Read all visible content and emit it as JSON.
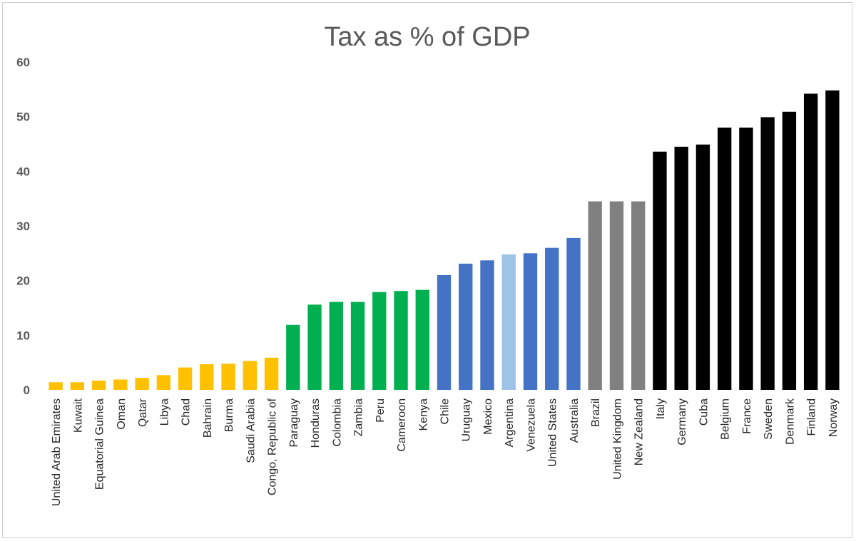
{
  "chart_data": {
    "type": "bar",
    "title": "Tax as % of GDP",
    "xlabel": "",
    "ylabel": "",
    "ylim": [
      0,
      60
    ],
    "yticks": [
      0,
      10,
      20,
      30,
      40,
      50,
      60
    ],
    "grid": false,
    "legend": "none",
    "categories": [
      "United Arab Emirates",
      "Kuwait",
      "Equatorial Guinea",
      "Oman",
      "Qatar",
      "Libya",
      "Chad",
      "Bahrain",
      "Burma",
      "Saudi Arabia",
      "Congo, Republic of",
      "Paraguay",
      "Honduras",
      "Colombia",
      "Zambia",
      "Peru",
      "Cameroon",
      "Kenya",
      "Chile",
      "Uruguay",
      "Mexico",
      "Argentina",
      "Venezuela",
      "United States",
      "Australia",
      "Brazil",
      "United Kingdom",
      "New Zealand",
      "Italy",
      "Germany",
      "Cuba",
      "Belgium",
      "France",
      "Sweden",
      "Denmark",
      "Finland",
      "Norway"
    ],
    "values": [
      1.4,
      1.4,
      1.7,
      1.9,
      2.2,
      2.7,
      4.1,
      4.7,
      4.8,
      5.3,
      5.9,
      11.9,
      15.6,
      16.1,
      16.1,
      17.9,
      18.1,
      18.3,
      21.0,
      23.1,
      23.7,
      24.8,
      25.0,
      26.0,
      27.8,
      34.5,
      34.5,
      34.5,
      43.6,
      44.5,
      44.9,
      48.0,
      48.0,
      49.9,
      50.9,
      54.2,
      54.8
    ],
    "colors": [
      "#FFC000",
      "#FFC000",
      "#FFC000",
      "#FFC000",
      "#FFC000",
      "#FFC000",
      "#FFC000",
      "#FFC000",
      "#FFC000",
      "#FFC000",
      "#FFC000",
      "#00B050",
      "#00B050",
      "#00B050",
      "#00B050",
      "#00B050",
      "#00B050",
      "#00B050",
      "#4472C4",
      "#4472C4",
      "#4472C4",
      "#9DC3E6",
      "#4472C4",
      "#4472C4",
      "#4472C4",
      "#808080",
      "#808080",
      "#808080",
      "#000000",
      "#000000",
      "#000000",
      "#000000",
      "#000000",
      "#000000",
      "#000000",
      "#000000",
      "#000000"
    ]
  }
}
